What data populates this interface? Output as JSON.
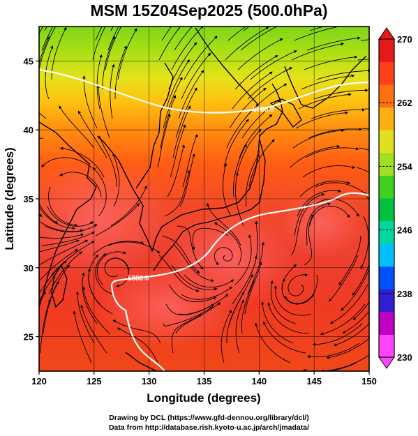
{
  "title": "MSM 15Z04Sep2025 (500.0hPa)",
  "map": {
    "lon_range": [
      120,
      150
    ],
    "lat_range": [
      22.5,
      47.5
    ],
    "x_ticks": [
      120,
      125,
      130,
      135,
      140,
      145,
      150
    ],
    "y_ticks": [
      25,
      30,
      35,
      40,
      45
    ],
    "x_label": "Longitude (degrees)",
    "y_label": "Latitude  (degrees)",
    "grid": true,
    "field": "temperature shading with streamlines",
    "contours": [
      {
        "label": "5880.0",
        "color": "#ffffff"
      },
      {
        "label": "5880.0",
        "color": "#ffffff"
      }
    ]
  },
  "colorbar": {
    "min": 230,
    "max": 270,
    "ticks": [
      270,
      262,
      254,
      246,
      238,
      230
    ],
    "colors": [
      "#ff44ff",
      "#c000c0",
      "#3020d0",
      "#0050ff",
      "#00c0ff",
      "#00d8a0",
      "#00c040",
      "#40d020",
      "#a0e020",
      "#e0e020",
      "#ffb010",
      "#ff7010",
      "#ff4018",
      "#e81818"
    ]
  },
  "credits": {
    "line1": "Drawing by DCL (https://www.gfd-dennou.org/library/dcl/)",
    "line2": "Data from http://database.rish.kyoto-u.ac.jp/arch/jmadata/"
  }
}
